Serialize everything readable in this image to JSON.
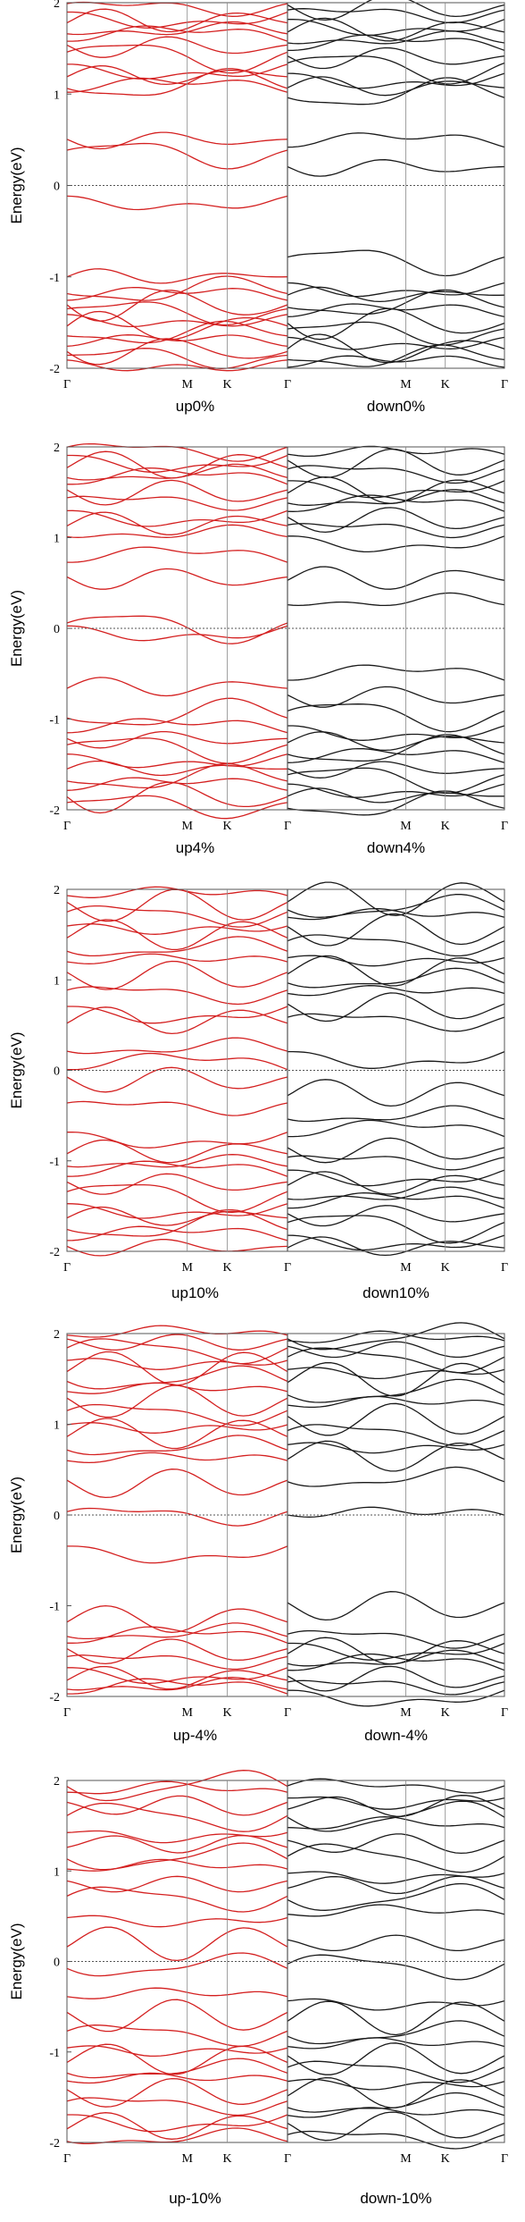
{
  "chart_data": [
    {
      "type": "line",
      "ylabel": "Energy(eV)",
      "ylim": [
        -2,
        2
      ],
      "yticks": [
        "2",
        "1",
        "0",
        "-1",
        "-2"
      ],
      "xticks": [
        "Γ",
        "M",
        "K",
        "Γ",
        "M",
        "K",
        "Γ"
      ],
      "reference_line": 0,
      "panels": [
        {
          "caption": "up0%",
          "color": "#d42020",
          "bands": [
            -1.95,
            -1.88,
            -1.8,
            -1.72,
            -1.62,
            -1.55,
            -1.45,
            -1.38,
            -1.3,
            -1.22,
            -1.15,
            -1.0,
            -0.15,
            0.35,
            0.5,
            1.05,
            1.1,
            1.2,
            1.3,
            1.42,
            1.52,
            1.6,
            1.7,
            1.8,
            1.88,
            1.95
          ]
        },
        {
          "caption": "down0%",
          "color": "#1a1a1a",
          "bands": [
            -1.95,
            -1.88,
            -1.8,
            -1.7,
            -1.6,
            -1.5,
            -1.4,
            -1.3,
            -1.2,
            -1.1,
            -0.82,
            0.2,
            0.45,
            1.0,
            1.08,
            1.2,
            1.3,
            1.4,
            1.5,
            1.6,
            1.7,
            1.8,
            1.88,
            1.95
          ]
        },
        {
          "caption": "up4%",
          "color": "#d42020",
          "bands": [
            -1.95,
            -1.85,
            -1.75,
            -1.65,
            -1.55,
            -1.42,
            -1.32,
            -1.22,
            -1.12,
            -0.95,
            -0.65,
            0.0,
            0.02,
            0.55,
            0.75,
            1.05,
            1.15,
            1.28,
            1.4,
            1.5,
            1.6,
            1.7,
            1.8,
            1.9,
            1.96
          ]
        },
        {
          "caption": "down4%",
          "color": "#1a1a1a",
          "bands": [
            -1.95,
            -1.85,
            -1.75,
            -1.65,
            -1.55,
            -1.45,
            -1.35,
            -1.25,
            -1.1,
            -0.95,
            -0.75,
            -0.55,
            0.3,
            0.55,
            1.0,
            1.1,
            1.2,
            1.3,
            1.42,
            1.52,
            1.62,
            1.72,
            1.82,
            1.92
          ]
        },
        {
          "caption": "up10%",
          "color": "#d42020",
          "bands": [
            -1.95,
            -1.85,
            -1.72,
            -1.62,
            -1.5,
            -1.38,
            -1.25,
            -1.15,
            -1.02,
            -0.9,
            -0.7,
            -0.4,
            -0.1,
            0.02,
            0.25,
            0.55,
            0.7,
            0.85,
            1.05,
            1.2,
            1.35,
            1.5,
            1.6,
            1.72,
            1.82,
            1.92
          ]
        },
        {
          "caption": "down10%",
          "color": "#1a1a1a",
          "bands": [
            -1.95,
            -1.85,
            -1.72,
            -1.6,
            -1.5,
            -1.38,
            -1.25,
            -1.12,
            -1.0,
            -0.88,
            -0.72,
            -0.5,
            -0.25,
            0.2,
            0.55,
            0.7,
            0.85,
            1.0,
            1.1,
            1.25,
            1.4,
            1.55,
            1.68,
            1.8,
            1.9
          ]
        },
        {
          "caption": "up-4%",
          "color": "#d42020",
          "bands": [
            -1.95,
            -1.88,
            -1.8,
            -1.7,
            -1.6,
            -1.5,
            -1.4,
            -1.3,
            -1.15,
            -0.35,
            0.0,
            0.35,
            0.6,
            0.75,
            0.9,
            1.0,
            1.12,
            1.25,
            1.35,
            1.5,
            1.62,
            1.72,
            1.82,
            1.9,
            1.96
          ]
        },
        {
          "caption": "down-4%",
          "color": "#1a1a1a",
          "bands": [
            -1.95,
            -1.88,
            -1.8,
            -1.7,
            -1.6,
            -1.5,
            -1.42,
            -1.35,
            -1.0,
            0.0,
            0.4,
            0.65,
            0.78,
            0.9,
            1.05,
            1.2,
            1.35,
            1.5,
            1.62,
            1.72,
            1.82,
            1.9,
            1.96
          ]
        },
        {
          "caption": "up-10%",
          "color": "#d42020",
          "bands": [
            -1.95,
            -1.82,
            -1.7,
            -1.58,
            -1.45,
            -1.32,
            -1.2,
            -1.08,
            -0.95,
            -0.8,
            -0.6,
            -0.4,
            -0.05,
            0.2,
            0.5,
            0.7,
            0.85,
            1.0,
            1.15,
            1.3,
            1.45,
            1.6,
            1.72,
            1.84,
            1.94
          ]
        },
        {
          "caption": "down-10%",
          "color": "#1a1a1a",
          "bands": [
            -1.95,
            -1.82,
            -1.7,
            -1.58,
            -1.45,
            -1.32,
            -1.2,
            -1.08,
            -0.95,
            -0.8,
            -0.62,
            -0.42,
            -0.05,
            0.2,
            0.5,
            0.7,
            0.85,
            1.0,
            1.15,
            1.3,
            1.45,
            1.6,
            1.72,
            1.84,
            1.94
          ]
        }
      ]
    }
  ]
}
